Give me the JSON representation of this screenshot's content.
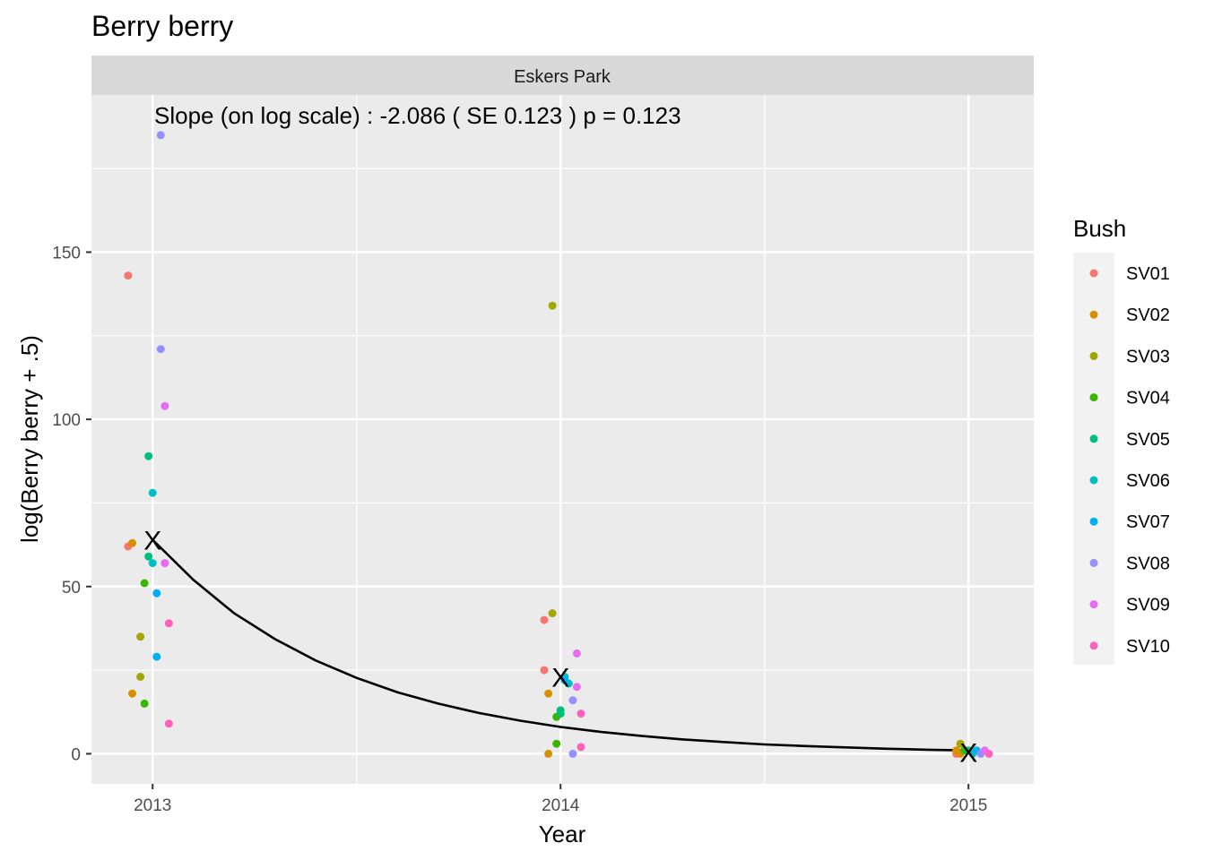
{
  "chart_data": {
    "type": "scatter",
    "title": "Berry berry",
    "facet_label": "Eskers Park",
    "annotation": "Slope (on log scale) :  -2.086  ( SE  0.123 ) p = 0.123",
    "xlabel": "Year",
    "ylabel": "log(Berry berry + .5)",
    "x_ticks": [
      "2013",
      "2014",
      "2015"
    ],
    "y_ticks": [
      "0",
      "50",
      "100",
      "150"
    ],
    "xlim": [
      2012.85,
      2015.16
    ],
    "ylim": [
      -9,
      197
    ],
    "grid": true,
    "legend": {
      "title": "Bush",
      "position": "right"
    },
    "series": [
      {
        "name": "SV01",
        "color": "#F8766D",
        "points": [
          [
            2012.94,
            143
          ],
          [
            2012.94,
            62
          ],
          [
            2013.96,
            40
          ],
          [
            2013.96,
            25
          ],
          [
            2014.97,
            0
          ]
        ]
      },
      {
        "name": "SV02",
        "color": "#D89000",
        "points": [
          [
            2012.95,
            63
          ],
          [
            2012.95,
            18
          ],
          [
            2013.97,
            18
          ],
          [
            2013.97,
            0
          ],
          [
            2014.97,
            1
          ],
          [
            2014.98,
            0
          ]
        ]
      },
      {
        "name": "SV03",
        "color": "#A3A500",
        "points": [
          [
            2012.97,
            35
          ],
          [
            2012.97,
            23
          ],
          [
            2013.98,
            134
          ],
          [
            2013.98,
            42
          ],
          [
            2014.98,
            3
          ]
        ]
      },
      {
        "name": "SV04",
        "color": "#39B600",
        "points": [
          [
            2012.98,
            51
          ],
          [
            2012.98,
            15
          ],
          [
            2013.99,
            11
          ],
          [
            2013.99,
            3
          ],
          [
            2014.99,
            1
          ]
        ]
      },
      {
        "name": "SV05",
        "color": "#00BF7D",
        "points": [
          [
            2012.99,
            89
          ],
          [
            2012.99,
            59
          ],
          [
            2014.0,
            13
          ],
          [
            2014.0,
            12
          ],
          [
            2015.0,
            1
          ]
        ]
      },
      {
        "name": "SV06",
        "color": "#00BFC4",
        "points": [
          [
            2013.0,
            78
          ],
          [
            2013.0,
            57
          ],
          [
            2014.01,
            23
          ],
          [
            2014.02,
            21
          ],
          [
            2015.01,
            0
          ]
        ]
      },
      {
        "name": "SV07",
        "color": "#00B0F6",
        "points": [
          [
            2013.01,
            48
          ],
          [
            2013.01,
            29
          ],
          [
            2014.01,
            22
          ],
          [
            2015.02,
            1
          ]
        ]
      },
      {
        "name": "SV08",
        "color": "#9590FF",
        "points": [
          [
            2013.02,
            185
          ],
          [
            2013.02,
            121
          ],
          [
            2014.03,
            16
          ],
          [
            2014.03,
            0
          ],
          [
            2015.03,
            0
          ]
        ]
      },
      {
        "name": "SV09",
        "color": "#E76BF3",
        "points": [
          [
            2013.03,
            104
          ],
          [
            2013.03,
            57
          ],
          [
            2014.04,
            30
          ],
          [
            2014.04,
            20
          ],
          [
            2015.04,
            1
          ]
        ]
      },
      {
        "name": "SV10",
        "color": "#FF62BC",
        "points": [
          [
            2013.04,
            39
          ],
          [
            2013.04,
            9
          ],
          [
            2014.05,
            12
          ],
          [
            2014.05,
            2
          ],
          [
            2015.05,
            0
          ]
        ]
      }
    ],
    "means": [
      [
        2013.0,
        64
      ],
      [
        2014.0,
        23
      ],
      [
        2015.0,
        0.5
      ]
    ],
    "mean_marker": "X",
    "fit_curve": [
      [
        2013.0,
        64
      ],
      [
        2013.1,
        52
      ],
      [
        2013.2,
        42
      ],
      [
        2013.3,
        34.3
      ],
      [
        2013.4,
        27.9
      ],
      [
        2013.5,
        22.7
      ],
      [
        2013.6,
        18.4
      ],
      [
        2013.7,
        15.0
      ],
      [
        2013.8,
        12.2
      ],
      [
        2013.9,
        9.9
      ],
      [
        2014.0,
        8.0
      ],
      [
        2014.1,
        6.5
      ],
      [
        2014.2,
        5.3
      ],
      [
        2014.3,
        4.3
      ],
      [
        2014.4,
        3.5
      ],
      [
        2014.5,
        2.8
      ],
      [
        2014.6,
        2.3
      ],
      [
        2014.7,
        1.9
      ],
      [
        2014.8,
        1.5
      ],
      [
        2014.9,
        1.2
      ],
      [
        2015.0,
        1.0
      ]
    ]
  }
}
